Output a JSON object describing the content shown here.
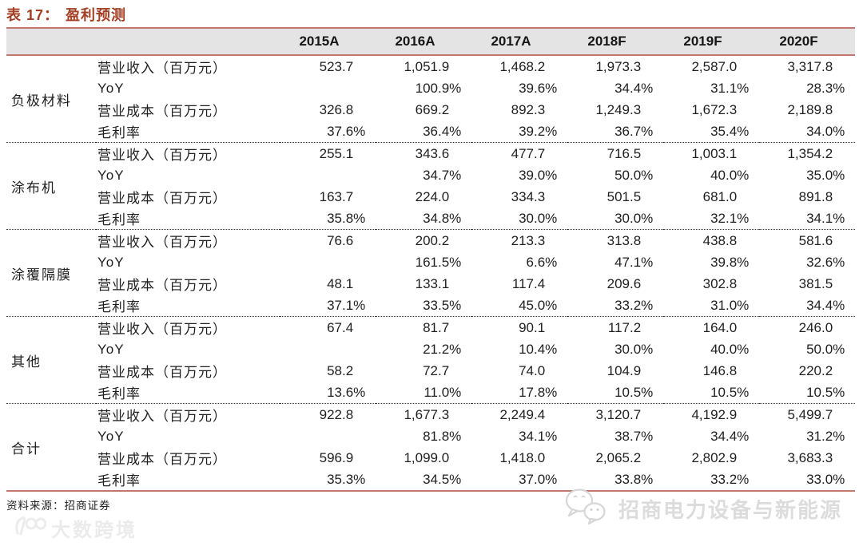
{
  "title": {
    "prefix": "表 17：",
    "name": "盈利预测"
  },
  "table": {
    "years": [
      "2015A",
      "2016A",
      "2017A",
      "2018F",
      "2019F",
      "2020F"
    ],
    "groups": [
      {
        "name": "负极材料",
        "rows": [
          {
            "label": "营业收入（百万元）",
            "values": [
              "523.7",
              "1,051.9",
              "1,468.2",
              "1,973.3",
              "2,587.0",
              "3,317.8"
            ]
          },
          {
            "label": "YoY",
            "values": [
              "",
              "100.9%",
              "39.6%",
              "34.4%",
              "31.1%",
              "28.3%"
            ]
          },
          {
            "label": "营业成本（百万元）",
            "values": [
              "326.8",
              "669.2",
              "892.3",
              "1,249.3",
              "1,672.3",
              "2,189.8"
            ]
          },
          {
            "label": "毛利率",
            "values": [
              "37.6%",
              "36.4%",
              "39.2%",
              "36.7%",
              "35.4%",
              "34.0%"
            ]
          }
        ]
      },
      {
        "name": "涂布机",
        "rows": [
          {
            "label": "营业收入（百万元）",
            "values": [
              "255.1",
              "343.6",
              "477.7",
              "716.5",
              "1,003.1",
              "1,354.2"
            ]
          },
          {
            "label": "YoY",
            "values": [
              "",
              "34.7%",
              "39.0%",
              "50.0%",
              "40.0%",
              "35.0%"
            ]
          },
          {
            "label": "营业成本（百万元）",
            "values": [
              "163.7",
              "224.0",
              "334.3",
              "501.5",
              "681.0",
              "891.8"
            ]
          },
          {
            "label": "毛利率",
            "values": [
              "35.8%",
              "34.8%",
              "30.0%",
              "30.0%",
              "32.1%",
              "34.1%"
            ]
          }
        ]
      },
      {
        "name": "涂覆隔膜",
        "rows": [
          {
            "label": "营业收入（百万元）",
            "values": [
              "76.6",
              "200.2",
              "213.3",
              "313.8",
              "438.8",
              "581.6"
            ]
          },
          {
            "label": "YoY",
            "values": [
              "",
              "161.5%",
              "6.6%",
              "47.1%",
              "39.8%",
              "32.6%"
            ]
          },
          {
            "label": "营业成本（百万元）",
            "values": [
              "48.1",
              "133.1",
              "117.4",
              "209.6",
              "302.8",
              "381.5"
            ]
          },
          {
            "label": "毛利率",
            "values": [
              "37.1%",
              "33.5%",
              "45.0%",
              "33.2%",
              "31.0%",
              "34.4%"
            ]
          }
        ]
      },
      {
        "name": "其他",
        "rows": [
          {
            "label": "营业收入（百万元）",
            "values": [
              "67.4",
              "81.7",
              "90.1",
              "117.2",
              "164.0",
              "246.0"
            ]
          },
          {
            "label": "YoY",
            "values": [
              "",
              "21.2%",
              "10.4%",
              "30.0%",
              "40.0%",
              "50.0%"
            ]
          },
          {
            "label": "营业成本（百万元）",
            "values": [
              "58.2",
              "72.7",
              "74.0",
              "104.9",
              "146.8",
              "220.2"
            ]
          },
          {
            "label": "毛利率",
            "values": [
              "13.6%",
              "11.0%",
              "17.8%",
              "10.5%",
              "10.5%",
              "10.5%"
            ]
          }
        ]
      },
      {
        "name": "合计",
        "rows": [
          {
            "label": "营业收入（百万元）",
            "values": [
              "922.8",
              "1,677.3",
              "2,249.4",
              "3,120.7",
              "4,192.9",
              "5,499.7"
            ]
          },
          {
            "label": "YoY",
            "values": [
              "",
              "81.8%",
              "34.1%",
              "38.7%",
              "34.4%",
              "31.2%"
            ]
          },
          {
            "label": "营业成本（百万元）",
            "values": [
              "596.9",
              "1,099.0",
              "1,418.0",
              "2,065.2",
              "2,802.9",
              "3,683.3"
            ]
          },
          {
            "label": "毛利率",
            "values": [
              "35.3%",
              "34.5%",
              "37.0%",
              "33.8%",
              "33.2%",
              "33.0%"
            ]
          }
        ]
      }
    ]
  },
  "footer": {
    "source_label": "资料来源：招商证券"
  },
  "watermarks": {
    "wechat_account": "招商电力设备与新能源",
    "site_logo_text": "大数跨境"
  },
  "colors": {
    "title_color": "#a23e22",
    "accent_line": "#c0796b",
    "header_bg": "#e4e4e4",
    "wm_right_color": "#dcdcdc",
    "wm_left_color": "#ebebeb"
  }
}
